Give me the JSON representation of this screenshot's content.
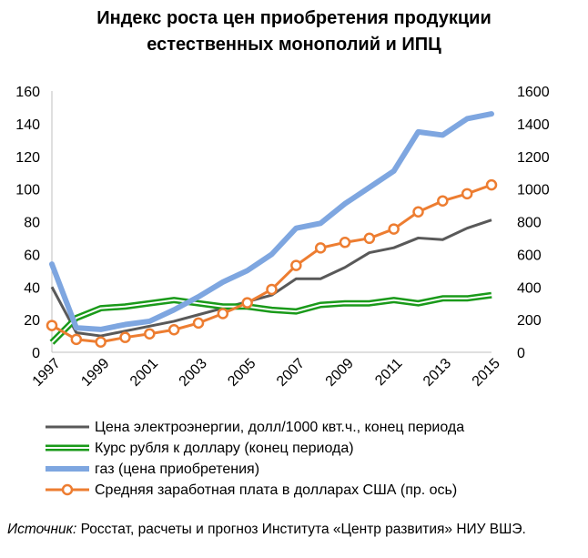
{
  "title_line1": "Индекс роста цен приобретения продукции",
  "title_line2": "естественных монополий и ИПЦ",
  "source_label": "Источник:",
  "source_text": "Росстат, расчеты и прогноз Института «Центр развития» НИУ ВШЭ.",
  "chart_data": {
    "type": "line",
    "x": [
      1997,
      1998,
      1999,
      2000,
      2001,
      2002,
      2003,
      2004,
      2005,
      2006,
      2007,
      2008,
      2009,
      2010,
      2011,
      2012,
      2013,
      2014,
      2015
    ],
    "x_tick_labels": [
      "1997",
      "1999",
      "2001",
      "2003",
      "2005",
      "2007",
      "2009",
      "2011",
      "2013",
      "2015"
    ],
    "y_left_ticks": [
      0,
      20,
      40,
      60,
      80,
      100,
      120,
      140,
      160
    ],
    "y_right_ticks": [
      0,
      200,
      400,
      600,
      800,
      1000,
      1200,
      1400,
      1600
    ],
    "ylim_left": [
      0,
      160
    ],
    "ylim_right": [
      0,
      1600
    ],
    "grid": false,
    "legend_position": "bottom",
    "series": [
      {
        "name": "Цена электроэнергии, долл/1000 квт.ч., конец периода",
        "axis": "left",
        "color": "#595959",
        "style": "line",
        "values": [
          40,
          12,
          10,
          13,
          16,
          19,
          23,
          27,
          31,
          35,
          45,
          45,
          52,
          61,
          64,
          70,
          69,
          76,
          81
        ]
      },
      {
        "name": "Курс рубля к доллару (конец периода)",
        "axis": "left",
        "color": "#1a9a1a",
        "style": "double",
        "values": [
          6,
          21,
          27,
          28,
          30,
          32,
          30,
          28,
          28,
          26,
          25,
          29,
          30,
          30,
          32,
          30,
          33,
          33,
          35
        ]
      },
      {
        "name": "газ (цена приобретения)",
        "axis": "left",
        "color": "#7ea6e0",
        "style": "thick",
        "values": [
          54,
          15,
          14,
          17,
          19,
          26,
          34,
          43,
          50,
          60,
          76,
          79,
          91,
          101,
          111,
          135,
          133,
          143,
          146
        ]
      },
      {
        "name": "Средняя заработная плата в долларах США  (пр. ось)",
        "axis": "right",
        "color": "#ed7d31",
        "style": "markers",
        "values": [
          164,
          79,
          63,
          91,
          113,
          138,
          179,
          237,
          303,
          385,
          532,
          639,
          673,
          698,
          755,
          860,
          927,
          971,
          1025
        ]
      }
    ]
  }
}
